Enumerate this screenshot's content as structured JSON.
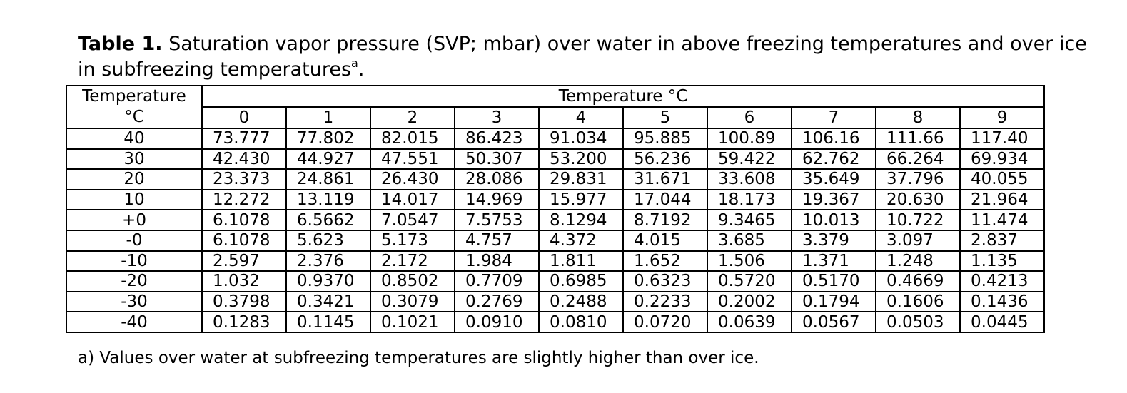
{
  "title": {
    "label": "Table 1.",
    "text": "Saturation vapor pressure (SVP; mbar) over water in above freezing temperatures and over ice in subfreezing temperatures",
    "note_mark": "a",
    "end": "."
  },
  "table": {
    "row_header": [
      "Temperature",
      "°C"
    ],
    "column_header": "Temperature °C",
    "columns": [
      0,
      1,
      2,
      3,
      4,
      5,
      6,
      7,
      8,
      9
    ],
    "rows": [
      [
        "40",
        "73.777",
        "77.802",
        "82.015",
        "86.423",
        "91.034",
        "95.885",
        "100.89",
        "106.16",
        "111.66",
        "117.40"
      ],
      [
        "30",
        "42.430",
        "44.927",
        "47.551",
        "50.307",
        "53.200",
        "56.236",
        "59.422",
        "62.762",
        "66.264",
        "69.934"
      ],
      [
        "20",
        "23.373",
        "24.861",
        "26.430",
        "28.086",
        "29.831",
        "31.671",
        "33.608",
        "35.649",
        "37.796",
        "40.055"
      ],
      [
        "10",
        "12.272",
        "13.119",
        "14.017",
        "14.969",
        "15.977",
        "17.044",
        "18.173",
        "19.367",
        "20.630",
        "21.964"
      ],
      [
        "+0",
        "6.1078",
        "6.5662",
        "7.0547",
        "7.5753",
        "8.1294",
        "8.7192",
        "9.3465",
        "10.013",
        "10.722",
        "11.474"
      ],
      [
        "-0",
        "6.1078",
        "5.623",
        "5.173",
        "4.757",
        "4.372",
        "4.015",
        "3.685",
        "3.379",
        "3.097",
        "2.837"
      ],
      [
        "-10",
        "2.597",
        "2.376",
        "2.172",
        "1.984",
        "1.811",
        "1.652",
        "1.506",
        "1.371",
        "1.248",
        "1.135"
      ],
      [
        "-20",
        "1.032",
        "0.9370",
        "0.8502",
        "0.7709",
        "0.6985",
        "0.6323",
        "0.5720",
        "0.5170",
        "0.4669",
        "0.4213"
      ],
      [
        "-30",
        "0.3798",
        "0.3421",
        "0.3079",
        "0.2769",
        "0.2488",
        "0.2233",
        "0.2002",
        "0.1794",
        "0.1606",
        "0.1436"
      ],
      [
        "-40",
        "0.1283",
        "0.1145",
        "0.1021",
        "0.0910",
        "0.0810",
        "0.0720",
        "0.0639",
        "0.0567",
        "0.0503",
        "0.0445"
      ]
    ]
  },
  "footnote": "a) Values over water at subfreezing temperatures are slightly higher than over ice."
}
